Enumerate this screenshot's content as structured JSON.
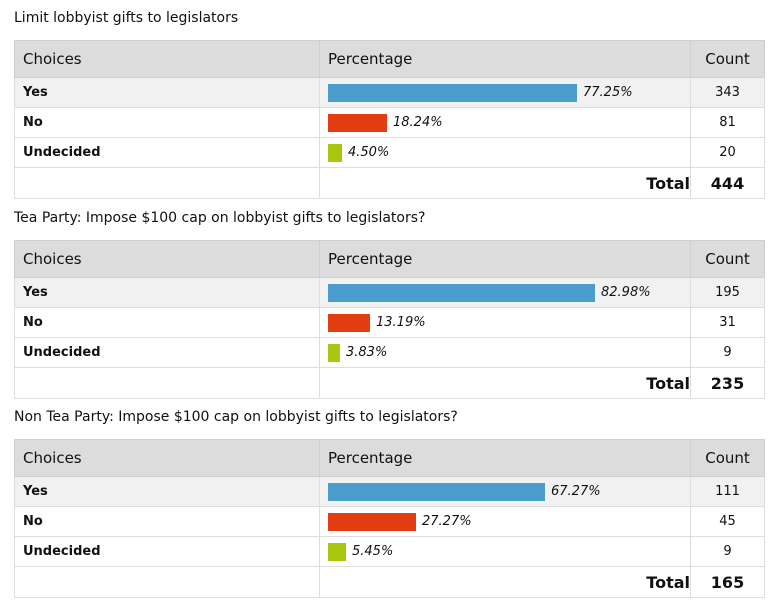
{
  "labels": {
    "col_choices": "Choices",
    "col_percentage": "Percentage",
    "col_count": "Count",
    "total": "Total"
  },
  "colors": {
    "yes": "#4a9ccd",
    "no": "#e33d12",
    "undecided": "#a8c80f"
  },
  "chart_data": [
    {
      "type": "table",
      "title": "Limit lobbyist gifts to legislators",
      "categories": [
        "Yes",
        "No",
        "Undecided"
      ],
      "percentages": [
        "77.25%",
        "18.24%",
        "4.50%"
      ],
      "values": [
        77.25,
        18.24,
        4.5
      ],
      "counts": [
        343,
        81,
        20
      ],
      "total": 444
    },
    {
      "type": "table",
      "title": "Tea Party: Impose $100 cap on lobbyist gifts to legislators?",
      "categories": [
        "Yes",
        "No",
        "Undecided"
      ],
      "percentages": [
        "82.98%",
        "13.19%",
        "3.83%"
      ],
      "values": [
        82.98,
        13.19,
        3.83
      ],
      "counts": [
        195,
        31,
        9
      ],
      "total": 235
    },
    {
      "type": "table",
      "title": "Non Tea Party: Impose $100 cap on lobbyist gifts to legislators?",
      "categories": [
        "Yes",
        "No",
        "Undecided"
      ],
      "percentages": [
        "67.27%",
        "27.27%",
        "5.45%"
      ],
      "values": [
        67.27,
        27.27,
        5.45
      ],
      "counts": [
        111,
        45,
        9
      ],
      "total": 165
    }
  ]
}
